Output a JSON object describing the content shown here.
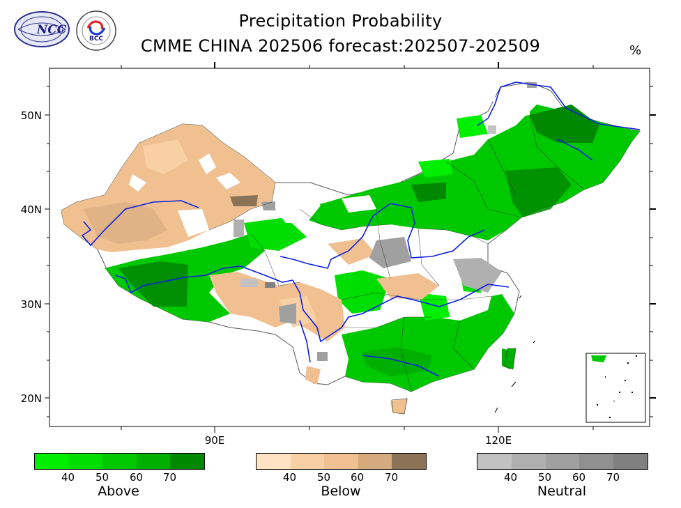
{
  "title": "Precipitation Probability",
  "subtitle": "CMME CHINA 202506 forecast:202507-202509",
  "unit": "%",
  "axes": {
    "lat_labels": [
      "50N",
      "40N",
      "30N",
      "20N"
    ],
    "lon_labels": [
      "90E",
      "120E"
    ]
  },
  "logos": {
    "left_text": "NCC",
    "right_text": "BCC"
  },
  "legend": [
    {
      "name": "Above",
      "ticks": [
        "40",
        "50",
        "60",
        "70"
      ],
      "colors": [
        "#00ee00",
        "#00dd00",
        "#00c800",
        "#00b000",
        "#008800"
      ]
    },
    {
      "name": "Below",
      "ticks": [
        "40",
        "50",
        "60",
        "70"
      ],
      "colors": [
        "#ffe3c2",
        "#f8d0a4",
        "#f0c090",
        "#d4aa7e",
        "#8c7256"
      ]
    },
    {
      "name": "Neutral",
      "ticks": [
        "40",
        "50",
        "60",
        "70"
      ],
      "colors": [
        "#c2c2c2",
        "#b0b0b0",
        "#a0a0a0",
        "#909090",
        "#808080"
      ]
    }
  ]
}
